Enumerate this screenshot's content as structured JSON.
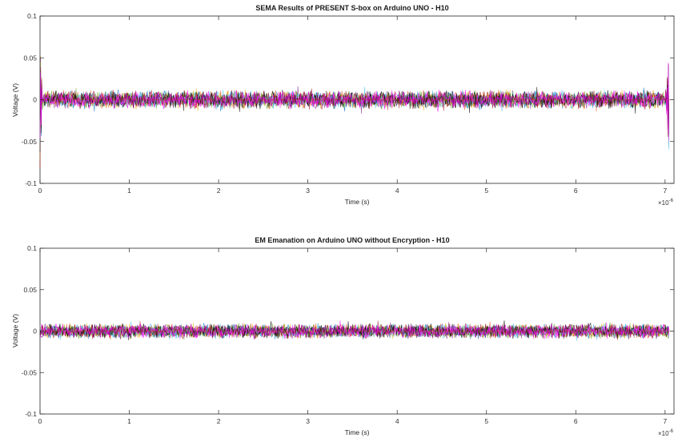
{
  "chart_data": [
    {
      "type": "line",
      "title": "SEMA Results of PRESENT S-box on Arduino UNO - H10",
      "xlabel": "Time (s)",
      "ylabel": "Voltage (V)",
      "xlim": [
        0,
        7.1e-06
      ],
      "ylim": [
        -0.1,
        0.1
      ],
      "x_ticks": [
        "0",
        "1",
        "2",
        "3",
        "4",
        "5",
        "6",
        "7"
      ],
      "y_ticks": [
        "-0.1",
        "-0.05",
        "0",
        "0.05",
        "0.1"
      ],
      "x_exponent_base": "×10",
      "x_exponent_power": "-6",
      "grid": false,
      "legend": "none",
      "trace_envelope_v": [
        -0.012,
        0.012
      ],
      "spikes": [
        {
          "t": 0.0,
          "max_v": 0.072,
          "min_v": -0.085
        },
        {
          "t": 7.04e-06,
          "max_v": 0.06,
          "min_v": -0.07
        }
      ],
      "series_colors": [
        "#0072BD",
        "#D95319",
        "#EDB120",
        "#7E2F8E",
        "#77AC30",
        "#4DBEEE",
        "#A2142F",
        "#000000",
        "#FF00FF"
      ]
    },
    {
      "type": "line",
      "title": "EM Emanation on Arduino UNO without Encryption - H10",
      "xlabel": "Time (s)",
      "ylabel": "Voltage (V)",
      "xlim": [
        0,
        7.1e-06
      ],
      "ylim": [
        -0.1,
        0.1
      ],
      "x_ticks": [
        "0",
        "1",
        "2",
        "3",
        "4",
        "5",
        "6",
        "7"
      ],
      "y_ticks": [
        "-0.1",
        "-0.05",
        "0",
        "0.05",
        "0.1"
      ],
      "x_exponent_base": "×10",
      "x_exponent_power": "-6",
      "grid": false,
      "legend": "none",
      "trace_envelope_v": [
        -0.01,
        0.01
      ],
      "spikes": [],
      "series_colors": [
        "#0072BD",
        "#D95319",
        "#EDB120",
        "#7E2F8E",
        "#77AC30",
        "#4DBEEE",
        "#A2142F",
        "#000000",
        "#FF00FF"
      ]
    }
  ]
}
